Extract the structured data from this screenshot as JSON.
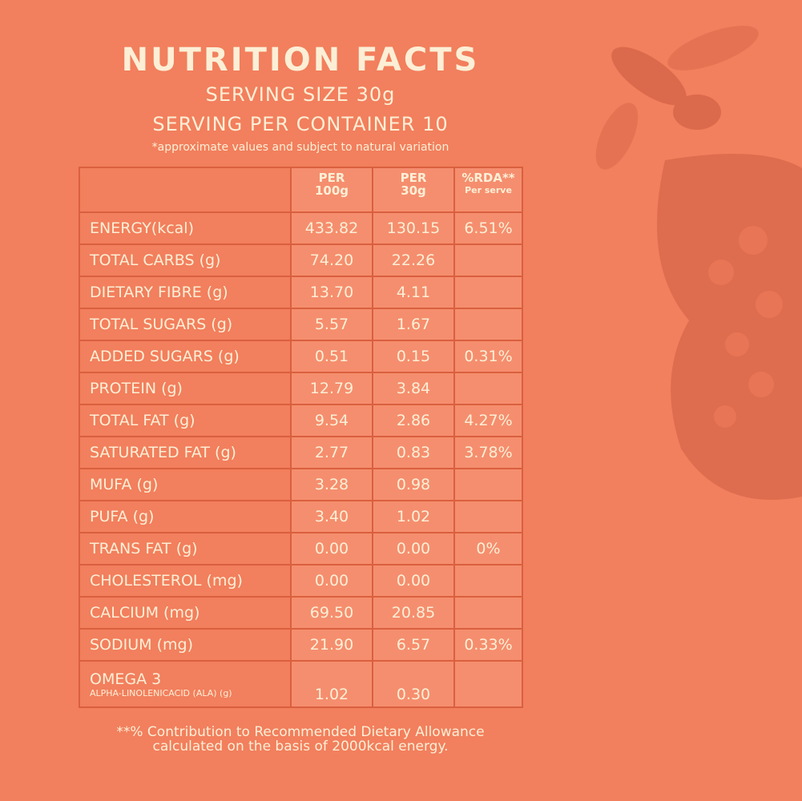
{
  "header": {
    "title": "NUTRITION FACTS",
    "serving_size": "SERVING SIZE 30g",
    "servings": "SERVING PER CONTAINER 10",
    "note": "*approximate values and subject to natural variation"
  },
  "table": {
    "columns": [
      {
        "top": "PER",
        "bottom": "100g"
      },
      {
        "top": "PER",
        "bottom": "30g"
      },
      {
        "top": "%RDA**",
        "bottom": "Per serve"
      }
    ],
    "rows": [
      {
        "label": "ENERGY(kcal)",
        "per100g": "433.82",
        "per30g": "130.15",
        "rda": "6.51%"
      },
      {
        "label": "TOTAL CARBS (g)",
        "per100g": "74.20",
        "per30g": "22.26"
      },
      {
        "label": "DIETARY FIBRE (g)",
        "per100g": "13.70",
        "per30g": "4.11"
      },
      {
        "label": "TOTAL SUGARS (g)",
        "per100g": "5.57",
        "per30g": "1.67"
      },
      {
        "label": "ADDED SUGARS (g)",
        "per100g": "0.51",
        "per30g": "0.15",
        "rda": "0.31%"
      },
      {
        "label": "PROTEIN (g)",
        "per100g": "12.79",
        "per30g": "3.84"
      },
      {
        "label": "TOTAL FAT (g)",
        "per100g": "9.54",
        "per30g": "2.86",
        "rda": "4.27%"
      },
      {
        "label": "SATURATED FAT (g)",
        "per100g": "2.77",
        "per30g": "0.83",
        "rda": "3.78%"
      },
      {
        "label": "MUFA (g)",
        "per100g": "3.28",
        "per30g": "0.98"
      },
      {
        "label": "PUFA (g)",
        "per100g": "3.40",
        "per30g": "1.02"
      },
      {
        "label": "TRANS FAT (g)",
        "per100g": "0.00",
        "per30g": "0.00",
        "rda": "0%"
      },
      {
        "label": "CHOLESTEROL (mg)",
        "per100g": "0.00",
        "per30g": "0.00"
      },
      {
        "label": "CALCIUM (mg)",
        "per100g": "69.50",
        "per30g": "20.85"
      },
      {
        "label": "SODIUM (mg)",
        "per100g": "21.90",
        "per30g": "6.57",
        "rda": "0.33%"
      },
      {
        "label": "OMEGA 3",
        "sublabel": "ALPHA-LINOLENICACID (ALA) (g)",
        "per100g": "1.02",
        "per30g": "0.30"
      }
    ]
  },
  "footnote": {
    "line1": "**% Contribution to Recommended Dietary Allowance",
    "line2": "calculated on the basis of 2000kcal energy."
  }
}
